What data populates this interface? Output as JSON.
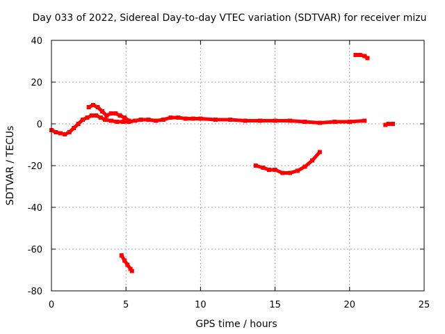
{
  "chart_data": {
    "type": "scatter",
    "title": "Day 033 of 2022, Sidereal Day-to-day VTEC variation (SDTVAR) for receiver mizu",
    "xlabel": "GPS time / hours",
    "ylabel": "SDTVAR / TECUs",
    "xlim": [
      0,
      25
    ],
    "ylim": [
      -80,
      40
    ],
    "xticks": [
      0,
      5,
      10,
      15,
      20,
      25
    ],
    "yticks": [
      -80,
      -60,
      -40,
      -20,
      0,
      20,
      40
    ],
    "grid": true,
    "color": "#ff0000",
    "series": [
      {
        "name": "main-trace",
        "x": [
          0.0,
          0.3,
          0.6,
          0.9,
          1.2,
          1.5,
          1.8,
          2.1,
          2.4,
          2.7,
          3.0,
          3.3,
          3.6,
          4.0,
          4.4,
          4.8,
          5.2,
          5.6,
          6.0,
          6.5,
          7.0,
          7.5,
          8.0,
          8.5,
          9.0,
          9.5,
          10.0,
          11.0,
          12.0,
          13.0,
          14.0,
          15.0,
          16.0,
          17.0,
          18.0,
          19.0,
          20.0,
          21.0
        ],
        "y": [
          -3,
          -4,
          -4.5,
          -5,
          -4,
          -2,
          0,
          2,
          3,
          4,
          4,
          3,
          2,
          1.5,
          1,
          1,
          1,
          1.5,
          2,
          2,
          1.5,
          2,
          3,
          3,
          2.5,
          2.5,
          2.5,
          2,
          2,
          1.5,
          1.5,
          1.5,
          1.5,
          1,
          0.5,
          1,
          1,
          1.5
        ]
      },
      {
        "name": "upper-arc",
        "x": [
          2.5,
          2.8,
          3.1,
          3.4,
          3.7,
          4.0,
          4.3,
          4.6,
          4.9,
          5.2
        ],
        "y": [
          8,
          9,
          8,
          6,
          4,
          5,
          5,
          4,
          3,
          1.5
        ]
      },
      {
        "name": "descending-segment",
        "x": [
          4.7,
          4.9,
          5.1,
          5.3,
          5.4
        ],
        "y": [
          -63,
          -65.5,
          -67.5,
          -69.5,
          -70.5
        ]
      },
      {
        "name": "curve-segment",
        "x": [
          13.7,
          14.2,
          14.6,
          15.0,
          15.5,
          16.0,
          16.5,
          17.0,
          17.5,
          18.0
        ],
        "y": [
          -20,
          -21,
          -22,
          -22,
          -23.5,
          -23.5,
          -22.5,
          -20.5,
          -17.5,
          -13.5
        ]
      },
      {
        "name": "high-segment",
        "x": [
          20.4,
          20.7,
          21.0,
          21.2
        ],
        "y": [
          33,
          33,
          32.5,
          31.5
        ]
      },
      {
        "name": "late-segment",
        "x": [
          22.4,
          22.6,
          22.9
        ],
        "y": [
          -0.5,
          0,
          0
        ]
      }
    ]
  }
}
